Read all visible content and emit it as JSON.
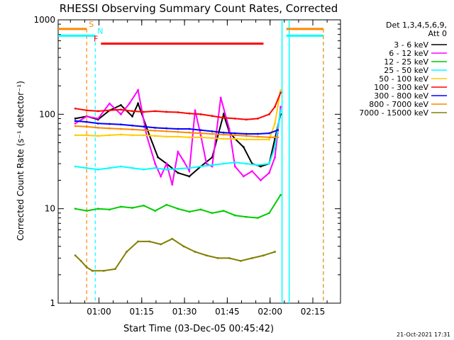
{
  "chart_data": {
    "type": "line",
    "title": "RHESSI Observing Summary Count Rates, Corrected",
    "xlabel": "Start Time (03-Dec-05 00:45:42)",
    "ylabel": "Corrected Count Rate (s⁻¹ detector⁻¹)",
    "yscale": "log",
    "ylim": [
      1,
      1000
    ],
    "xlim_minutes_after_start": [
      0,
      99
    ],
    "y_ticks": [
      "1",
      "10",
      "100",
      "1000"
    ],
    "x_ticks": [
      {
        "label": "01:00",
        "minute": 14.3
      },
      {
        "label": "01:15",
        "minute": 29.3
      },
      {
        "label": "01:30",
        "minute": 44.3
      },
      {
        "label": "01:45",
        "minute": 59.3
      },
      {
        "label": "02:00",
        "minute": 74.3
      },
      {
        "label": "02:15",
        "minute": 89.3
      }
    ],
    "legend_header": [
      "Det 1,3,4,5,6,9,",
      "Att 0"
    ],
    "legend_position": "top-right, outside plot",
    "series": [
      {
        "name": "3 - 6 keV",
        "color": "#000000",
        "x": [
          6,
          10,
          14,
          18,
          22,
          26,
          28,
          32,
          35,
          38,
          42,
          46,
          50,
          54,
          58,
          60,
          62,
          65,
          68,
          71,
          74,
          76,
          78
        ],
        "y": [
          90,
          95,
          88,
          110,
          125,
          95,
          130,
          60,
          35,
          30,
          24,
          22,
          28,
          35,
          100,
          65,
          55,
          45,
          30,
          28,
          30,
          55,
          100
        ]
      },
      {
        "name": "6 - 12 keV",
        "color": "#ff00ff",
        "x": [
          6,
          10,
          14,
          18,
          22,
          25,
          28,
          31,
          34,
          36,
          38,
          40,
          42,
          44,
          46,
          48,
          50,
          52,
          54,
          57,
          60,
          62,
          65,
          68,
          71,
          74,
          76,
          78
        ],
        "y": [
          80,
          95,
          90,
          130,
          100,
          130,
          180,
          60,
          30,
          22,
          30,
          18,
          40,
          32,
          25,
          110,
          60,
          30,
          28,
          150,
          70,
          28,
          22,
          25,
          20,
          24,
          35,
          120
        ]
      },
      {
        "name": "12 - 25 keV",
        "color": "#00cc00",
        "x": [
          6,
          10,
          14,
          18,
          22,
          26,
          30,
          34,
          38,
          42,
          46,
          50,
          54,
          58,
          62,
          66,
          70,
          74,
          78
        ],
        "y": [
          10,
          9.5,
          10,
          9.8,
          10.5,
          10.2,
          10.8,
          9.5,
          11,
          10,
          9.3,
          9.8,
          9,
          9.5,
          8.5,
          8.2,
          8,
          9,
          14
        ]
      },
      {
        "name": "25 - 50 keV",
        "color": "#00ffff",
        "x": [
          6,
          10,
          14,
          18,
          22,
          26,
          30,
          34,
          38,
          42,
          46,
          50,
          54,
          58,
          62,
          66,
          70,
          74,
          76,
          78
        ],
        "y": [
          28,
          27,
          26,
          27,
          28,
          27,
          26,
          27,
          26,
          26.5,
          27,
          28,
          29,
          30,
          31,
          30,
          29,
          30,
          45,
          110
        ]
      },
      {
        "name": "50 - 100 keV",
        "color": "#ffcc00",
        "x": [
          6,
          10,
          14,
          18,
          22,
          26,
          30,
          34,
          38,
          42,
          46,
          50,
          54,
          58,
          62,
          66,
          70,
          74,
          76,
          78
        ],
        "y": [
          60,
          60,
          59,
          60,
          61,
          60,
          60,
          59,
          58,
          58,
          57,
          57,
          56,
          55,
          55,
          54,
          54,
          54,
          80,
          180
        ]
      },
      {
        "name": "100 - 300 keV",
        "color": "#ff0000",
        "x": [
          6,
          10,
          14,
          18,
          22,
          26,
          30,
          34,
          38,
          42,
          46,
          50,
          54,
          58,
          62,
          66,
          70,
          74,
          76,
          78
        ],
        "y": [
          115,
          110,
          108,
          110,
          112,
          108,
          106,
          108,
          106,
          105,
          102,
          100,
          96,
          92,
          90,
          88,
          90,
          100,
          120,
          170
        ]
      },
      {
        "name": "300 - 800 keV",
        "color": "#0000ff",
        "x": [
          6,
          10,
          14,
          18,
          22,
          26,
          30,
          34,
          38,
          42,
          46,
          50,
          54,
          58,
          62,
          66,
          70,
          74,
          77
        ],
        "y": [
          85,
          83,
          80,
          79,
          78,
          76,
          74,
          72,
          71,
          70,
          70,
          68,
          66,
          64,
          63,
          62,
          62,
          63,
          68
        ]
      },
      {
        "name": "800 - 7000 keV",
        "color": "#ff8800",
        "x": [
          6,
          10,
          14,
          18,
          22,
          26,
          30,
          34,
          38,
          42,
          46,
          50,
          54,
          58,
          62,
          66,
          70,
          74,
          77
        ],
        "y": [
          75,
          74,
          72,
          71,
          70,
          69,
          68,
          67,
          66,
          65,
          64,
          63,
          62,
          61,
          60,
          59,
          58,
          57,
          57
        ]
      },
      {
        "name": "7000 - 15000 keV",
        "color": "#808000",
        "x": [
          6,
          8,
          10,
          12,
          16,
          20,
          24,
          28,
          32,
          36,
          40,
          44,
          48,
          52,
          56,
          60,
          64,
          68,
          72,
          76
        ],
        "y": [
          3.2,
          2.8,
          2.4,
          2.2,
          2.2,
          2.3,
          3.5,
          4.5,
          4.5,
          4.2,
          4.8,
          4.0,
          3.5,
          3.2,
          3.0,
          3.0,
          2.8,
          3.0,
          3.2,
          3.5
        ]
      }
    ],
    "flags": [
      {
        "label": "S",
        "color": "#ff8800",
        "x_start": 0,
        "x_end": 10,
        "y": 800,
        "vline_x": 10,
        "vline_style": "dashed"
      },
      {
        "label": "N",
        "color": "#00ffff",
        "x_start": 0,
        "x_end": 13,
        "y": 680,
        "vline_x": 13,
        "vline_style": "dashed"
      },
      {
        "label": "F",
        "color": "#ff0000",
        "x_start": 15,
        "x_end": 72,
        "y": 560
      }
    ],
    "night_intervals": [
      {
        "color": "#00ffff",
        "x_start": 80,
        "x_end": 93,
        "y": 680
      },
      {
        "color": "#ff8800",
        "x_start": 80,
        "x_end": 93,
        "y": 800
      }
    ],
    "boundary_lines_minute": [
      78.5,
      81
    ],
    "timestamp": "21-Oct-2021 17:31"
  }
}
